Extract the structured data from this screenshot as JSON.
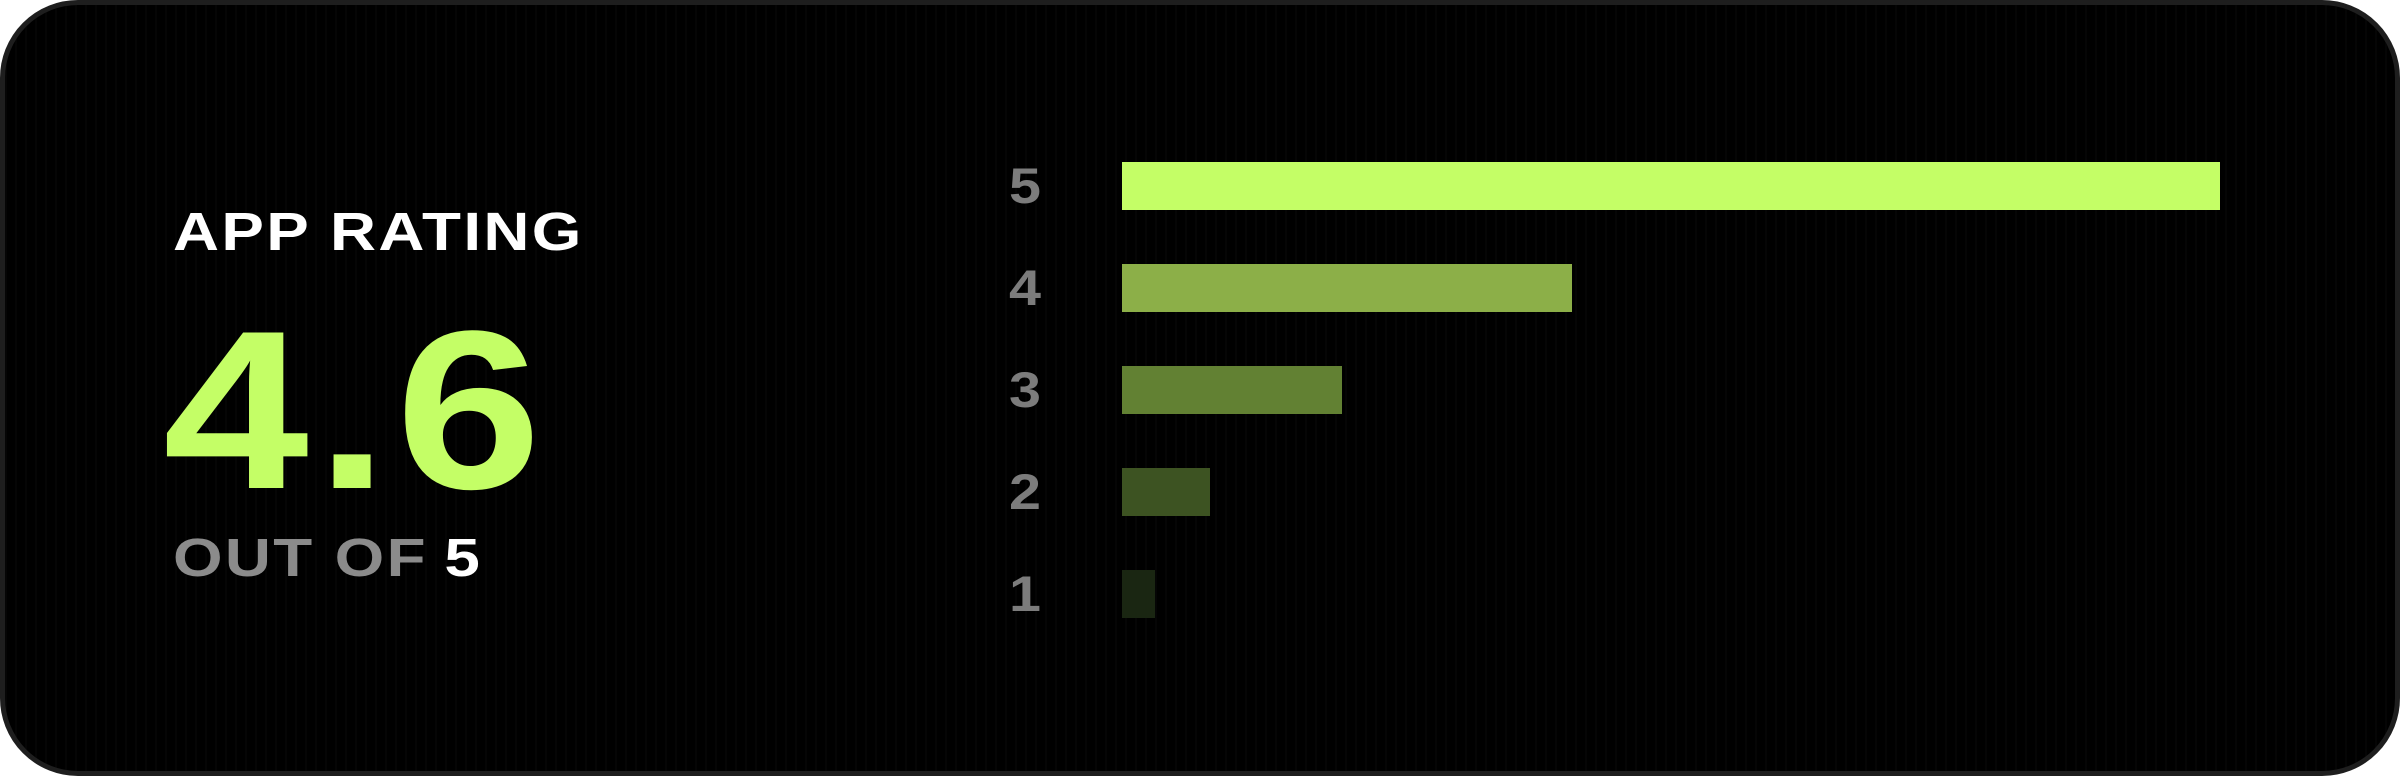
{
  "rating_card": {
    "title": "APP RATING",
    "score": "4.6",
    "out_of_prefix": "OUT OF",
    "out_of_max": "5",
    "colors": {
      "accent": "#c4fe66",
      "background": "#000000",
      "border": "#1e1e1e",
      "muted_text": "#8b8b8b",
      "label_text": "#7c7c7c"
    },
    "distribution": [
      {
        "stars": "5",
        "share": 1.0,
        "color": "#c4fe66"
      },
      {
        "stars": "4",
        "share": 0.41,
        "color": "#8caf48"
      },
      {
        "stars": "3",
        "share": 0.2,
        "color": "#628133"
      },
      {
        "stars": "2",
        "share": 0.08,
        "color": "#3d5322"
      },
      {
        "stars": "1",
        "share": 0.03,
        "color": "#1a2612"
      }
    ]
  }
}
